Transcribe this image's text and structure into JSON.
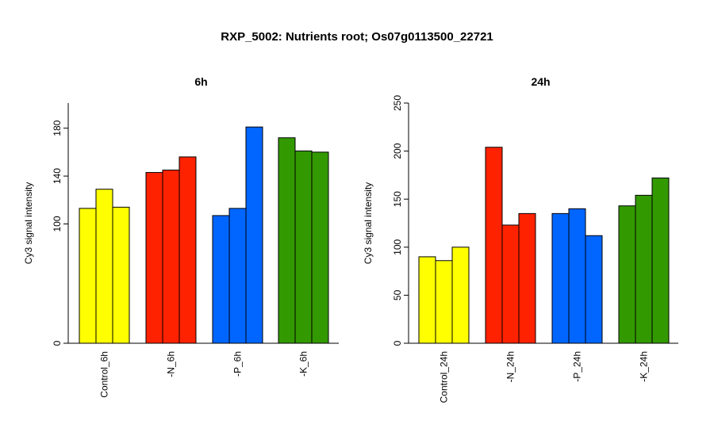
{
  "figure": {
    "title": "RXP_5002: Nutrients root; Os07g0113500_22721"
  },
  "chart_data": [
    {
      "type": "bar",
      "title": "6h",
      "ylabel": "Cy3 signal intensity",
      "xlabel": "",
      "yticks": [
        "0",
        "100",
        "140",
        "180"
      ],
      "categories": [
        "Control_6h",
        "-N_6h",
        "-P_6h",
        "-K_6h"
      ],
      "colors": [
        "#ffff00",
        "#ff2200",
        "#0066ff",
        "#339900"
      ],
      "values": [
        [
          113,
          129,
          114
        ],
        [
          143,
          145,
          156
        ],
        [
          107,
          113,
          181
        ],
        [
          172,
          161,
          160
        ]
      ],
      "scale": "piecewise (0 at baseline, 100-180 linear)",
      "grid": false
    },
    {
      "type": "bar",
      "title": "24h",
      "ylabel": "Cy3 signal intensity",
      "xlabel": "",
      "yticks": [
        "0",
        "50",
        "100",
        "150",
        "200",
        "250"
      ],
      "ylim": [
        0,
        250
      ],
      "categories": [
        "Control_24h",
        "-N_24h",
        "-P_24h",
        "-K_24h"
      ],
      "colors": [
        "#ffff00",
        "#ff2200",
        "#0066ff",
        "#339900"
      ],
      "values": [
        [
          90,
          86,
          100
        ],
        [
          204,
          123,
          135
        ],
        [
          135,
          140,
          112
        ],
        [
          143,
          154,
          172
        ]
      ],
      "grid": false
    }
  ]
}
